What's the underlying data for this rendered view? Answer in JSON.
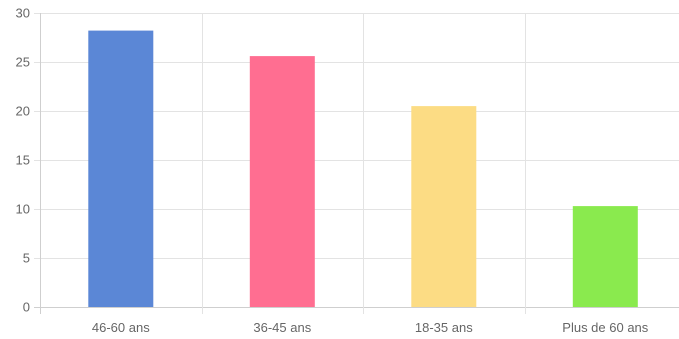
{
  "chart_data": {
    "type": "bar",
    "title": "",
    "xlabel": "",
    "ylabel": "",
    "categories": [
      "46-60 ans",
      "36-45 ans",
      "18-35 ans",
      "Plus de 60 ans"
    ],
    "values": [
      28.2,
      25.6,
      20.5,
      10.3
    ],
    "colors": [
      "#5b87d6",
      "#ff6e91",
      "#fcdc84",
      "#8aea4e"
    ],
    "ylim": [
      0,
      30
    ],
    "yticks": [
      0,
      5,
      10,
      15,
      20,
      25,
      30
    ],
    "grid": true,
    "legend": "none"
  }
}
